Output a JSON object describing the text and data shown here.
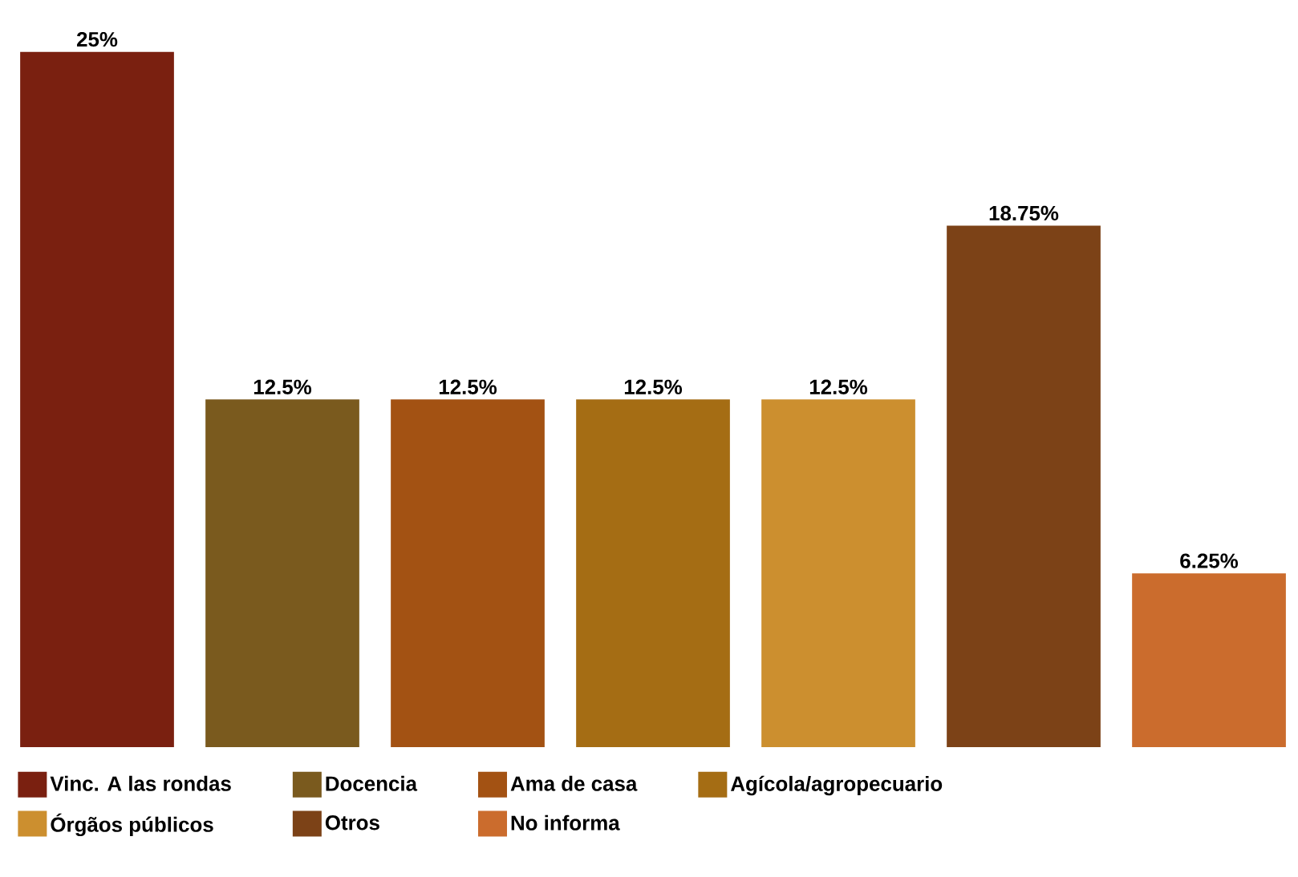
{
  "chart_data": {
    "type": "bar",
    "categories": [
      null
    ],
    "series": [
      {
        "name": "Vinc. A las rondas",
        "color": "#7a2010",
        "values": [
          25
        ],
        "value_labels": [
          "25%"
        ]
      },
      {
        "name": "Docencia",
        "color": "#7a5a1e",
        "values": [
          12.5
        ],
        "value_labels": [
          "12.5%"
        ]
      },
      {
        "name": "Ama de casa",
        "color": "#a35213",
        "values": [
          12.5
        ],
        "value_labels": [
          "12.5%"
        ]
      },
      {
        "name": "Agícola/agropecuario",
        "color": "#a56d14",
        "values": [
          12.5
        ],
        "value_labels": [
          "12.5%"
        ]
      },
      {
        "name": "Órgãos públicos",
        "color": "#cc8f2f",
        "values": [
          12.5
        ],
        "value_labels": [
          "12.5%"
        ]
      },
      {
        "name": "Otros",
        "color": "#7c4217",
        "values": [
          18.75
        ],
        "value_labels": [
          "18.75%"
        ]
      },
      {
        "name": "No informa",
        "color": "#cb6c2d",
        "values": [
          6.25
        ],
        "value_labels": [
          "6.25%"
        ]
      }
    ],
    "legend": "bottom"
  }
}
